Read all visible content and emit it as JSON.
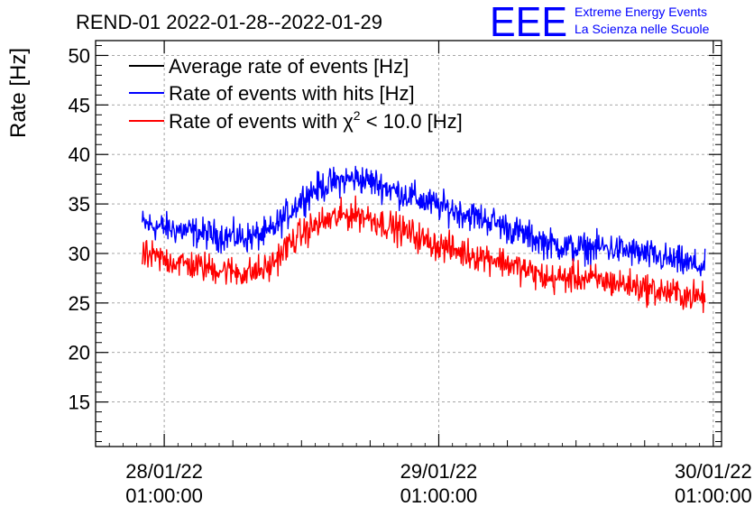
{
  "chart_data": {
    "type": "line",
    "title": "REND-01 2022-01-28--2022-01-29",
    "ylabel": "Rate [Hz]",
    "xlabel": "",
    "ylim": [
      10.5,
      51.5
    ],
    "xlim": [
      -0.25,
      2.03
    ],
    "yticks": [
      15,
      20,
      25,
      30,
      35,
      40,
      45,
      50
    ],
    "ytick_labels": [
      "15",
      "20",
      "25",
      "30",
      "35",
      "40",
      "45",
      "50"
    ],
    "xticks": [
      0,
      1,
      2
    ],
    "xtick_labels": [
      {
        "date": "28/01/22",
        "time": "01:00:00"
      },
      {
        "date": "29/01/22",
        "time": "01:00:00"
      },
      {
        "date": "30/01/22",
        "time": "01:00:00"
      }
    ],
    "grid": true,
    "legend_position": "top-left",
    "series": [
      {
        "name": "Average rate of events [Hz]",
        "color": "#000000",
        "noise": 0,
        "x": [],
        "values": []
      },
      {
        "name": "Rate of events with hits [Hz]",
        "color": "#0000ff",
        "noise": 1.2,
        "x": [
          -0.08,
          0.0,
          0.1,
          0.2,
          0.3,
          0.38,
          0.45,
          0.5,
          0.55,
          0.6,
          0.65,
          0.7,
          0.75,
          0.8,
          0.85,
          0.9,
          0.95,
          1.0,
          1.1,
          1.2,
          1.3,
          1.4,
          1.5,
          1.6,
          1.7,
          1.8,
          1.9,
          1.97
        ],
        "values": [
          33.0,
          32.6,
          32.2,
          31.8,
          31.6,
          32.0,
          34.0,
          35.5,
          36.5,
          37.0,
          37.4,
          37.6,
          37.3,
          36.8,
          36.2,
          35.8,
          35.2,
          34.8,
          34.0,
          33.2,
          32.0,
          31.0,
          30.5,
          30.6,
          30.2,
          29.6,
          29.0,
          28.6
        ]
      },
      {
        "name": "Rate of events with χ² < 10.0 [Hz]",
        "label_parts": [
          "Rate of events with ",
          "χ",
          "2",
          " < 10.0 [Hz]"
        ],
        "color": "#ff0000",
        "noise": 1.2,
        "x": [
          -0.08,
          0.0,
          0.1,
          0.2,
          0.3,
          0.38,
          0.45,
          0.5,
          0.55,
          0.6,
          0.65,
          0.7,
          0.75,
          0.8,
          0.85,
          0.9,
          0.95,
          1.0,
          1.1,
          1.2,
          1.3,
          1.4,
          1.5,
          1.6,
          1.7,
          1.8,
          1.9,
          1.97
        ],
        "values": [
          29.8,
          29.4,
          28.8,
          28.4,
          28.0,
          28.5,
          30.8,
          32.0,
          32.8,
          33.4,
          33.8,
          34.0,
          33.6,
          33.0,
          32.5,
          32.0,
          31.3,
          30.8,
          30.0,
          29.5,
          28.5,
          27.4,
          27.6,
          27.2,
          26.8,
          26.2,
          25.8,
          25.5
        ]
      }
    ]
  },
  "logo": {
    "letters": "EEE",
    "line1": "Extreme Energy Events",
    "line2": "La Scienza nelle Scuole",
    "color": "#0000ff"
  }
}
